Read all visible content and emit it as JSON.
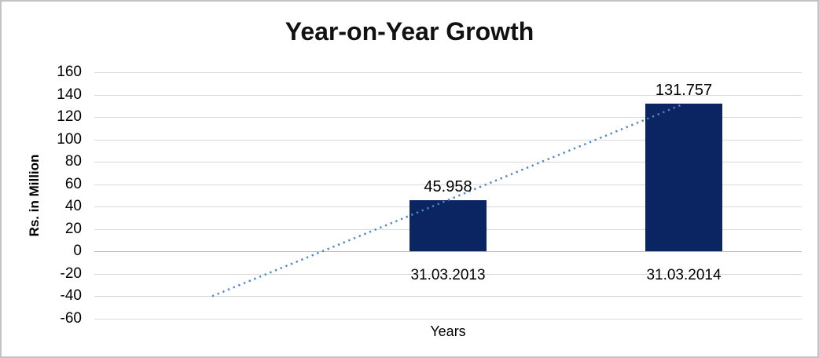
{
  "chart_data": {
    "type": "bar",
    "title": "Year-on-Year Growth",
    "xlabel": "Years",
    "ylabel": "Rs. in Million",
    "categories": [
      "",
      "31.03.2013",
      "31.03.2014"
    ],
    "values": [
      null,
      45.958,
      131.757
    ],
    "data_labels": [
      "",
      "45.958",
      "131.757"
    ],
    "yticks": [
      160,
      140,
      120,
      100,
      80,
      60,
      40,
      20,
      0,
      -20,
      -40,
      -60
    ],
    "ylim": [
      -60,
      160
    ],
    "grid": true,
    "legend": "none",
    "colors": {
      "bar": "#0b2562",
      "trendline": "#4f86c4",
      "gridline": "#d9d9d9",
      "axis_line": "#b9b9b9",
      "text": "#000000"
    },
    "trendline": {
      "type": "linear",
      "style": "dotted",
      "start": {
        "slot": 0,
        "value": -39.841
      },
      "end": {
        "slot": 2,
        "value": 131.757
      }
    }
  }
}
